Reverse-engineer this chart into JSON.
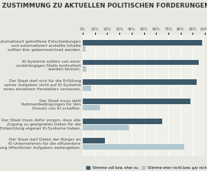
{
  "title": "ZUSTIMMUNG ZU AKTUELLEN POLITISCHEN FORDERUNGEN",
  "categories": [
    "Automatisiert getroffene Entscheidungen\nund automatisiert erstellte Inhalte\nsollten klar gekennzeichnet werden.",
    "KI-Systeme sollten von einer\nunabhängigen Stelle kontrolliert\nwerden können.",
    "Der Staat darf sich für die Erfüllung\nseiner Aufgaben nicht auf KI-Systeme\neines einzelnen Herstellers verlassen.",
    "Der Staat muss jetzt\nRahmenbedingungen für den\nEinsatz von KI schaffen.",
    "Der Staat muss dafür sorgen, dass alle\nZugang zu geeigneten Daten für die\nEntwicklung eigener KI-Systeme haben.",
    "Der Staat darf Daten der Bürger an\nKI-Unternehmen für die effizientere\nErfüllung öffentlicher Aufgaben weitergeben."
  ],
  "agree_values": [
    98,
    95,
    93,
    88,
    65,
    18
  ],
  "disagree_values": [
    2,
    3,
    7,
    14,
    38,
    83
  ],
  "agree_color": "#3d5a6b",
  "disagree_color": "#b2c8d0",
  "legend_agree": "Stimme voll bzw. eher zu",
  "legend_disagree": "Stimme eher nicht bzw. gar nicht zu",
  "xtick_labels": [
    "0%",
    "10%",
    "20%",
    "30%",
    "40%",
    "50%",
    "60%",
    "70%",
    "80%",
    "90%",
    "100%"
  ],
  "xtick_values": [
    0,
    10,
    20,
    30,
    40,
    50,
    60,
    70,
    80,
    90,
    100
  ],
  "outer_bg": "#e8e8e3",
  "inner_bg": "#f0f0eb",
  "title_fontsize": 6.5,
  "label_fontsize": 4.2,
  "tick_fontsize": 3.8,
  "legend_fontsize": 3.8
}
